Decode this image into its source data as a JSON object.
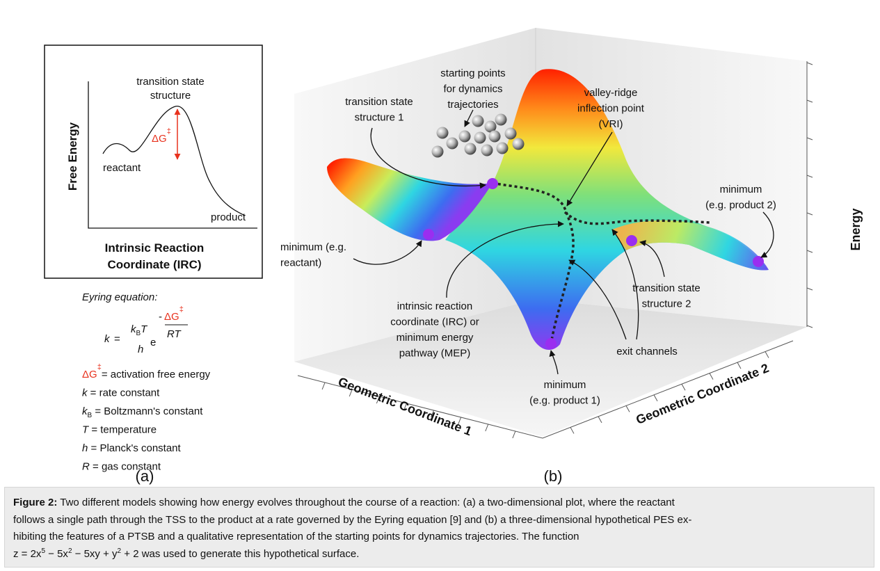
{
  "panel_a": {
    "transition_state_label": [
      "transition state",
      "structure"
    ],
    "delta_g": {
      "symbol": "ΔG",
      "superscript": "‡"
    },
    "reactant_label": "reactant",
    "product_label": "product",
    "y_axis_label": "Free Energy",
    "x_axis_label": [
      "Intrinsic Reaction",
      "Coordinate (IRC)"
    ],
    "equation_heading": "Eyring equation:",
    "equation": {
      "lhs": "k",
      "equals": "=",
      "numerator_k": "k",
      "numerator_sub": "B",
      "numerator_t": "T",
      "denominator": "h",
      "base": "e",
      "exponent_sign": "-",
      "exponent_numerator": "ΔG",
      "exponent_superscript": "‡",
      "exponent_denominator": "RT"
    },
    "definitions": [
      {
        "symbol": "ΔG",
        "superscript": "‡",
        "text": "= activation free energy"
      },
      {
        "symbol": "k",
        "text": " = rate constant"
      },
      {
        "symbol": "k",
        "subscript": "B",
        "text": " = Boltzmann's constant"
      },
      {
        "symbol": "T",
        "text": " = temperature"
      },
      {
        "symbol": "h",
        "text": " = Planck's constant"
      },
      {
        "symbol": "R",
        "text": " = gas constant"
      }
    ],
    "panel_label": "(a)"
  },
  "panel_b": {
    "starting_points": [
      "starting points",
      "for dynamics",
      "trajectories"
    ],
    "transition_state_1": [
      "transition state",
      "structure 1"
    ],
    "vri": [
      "valley-ridge",
      "inflection point",
      "(VRI)"
    ],
    "minimum_product_2": [
      "minimum",
      "(e.g. product 2)"
    ],
    "minimum_reactant": [
      "minimum (e.g.",
      "reactant)"
    ],
    "irc": [
      "intrinsic reaction",
      "coordinate (IRC) or",
      "minimum energy",
      "pathway (MEP)"
    ],
    "transition_state_2": [
      "transition state",
      "structure 2"
    ],
    "exit_channels": "exit channels",
    "minimum_product_1": [
      "minimum",
      "(e.g. product 1)"
    ],
    "axis_1": "Geometric Coordinate 1",
    "axis_2": "Geometric Coordinate 2",
    "axis_energy": "Energy",
    "panel_label": "(b)"
  },
  "caption": {
    "label": "Figure 2:",
    "lines": [
      " Two different models showing how energy evolves throughout the course of a reaction: (a) a two-dimensional plot, where the reactant",
      "follows a single path through the TSS to the product at a rate governed by the Eyring equation [9] and (b) a three-dimensional hypothetical PES ex-",
      "hibiting the features of a PTSB and a qualitative representation of the starting points for dynamics trajectories. The function"
    ],
    "last_line": [
      {
        "text": "z = 2x"
      },
      {
        "superscript": "5"
      },
      {
        "text": " − 5x"
      },
      {
        "superscript": "2"
      },
      {
        "text": " − 5xy + y"
      },
      {
        "superscript": "2"
      },
      {
        "text": " + 2 was used to generate this hypothetical surface."
      }
    ]
  }
}
